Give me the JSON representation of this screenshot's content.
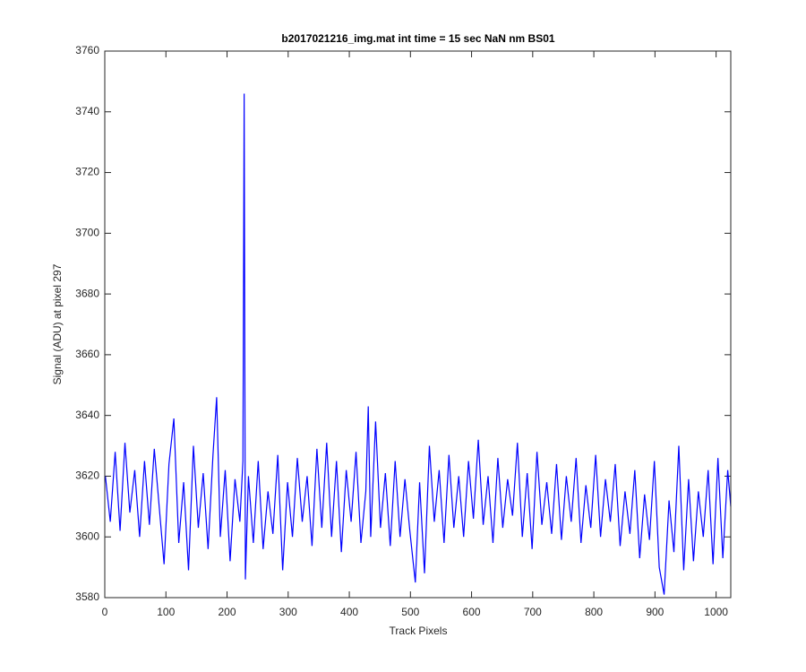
{
  "chart_data": {
    "type": "line",
    "title": "b2017021216_img.mat int time = 15 sec  NaN nm BS01",
    "xlabel": "Track Pixels",
    "ylabel": "Signal (ADU) at pixel 297",
    "xlim": [
      0,
      1024
    ],
    "ylim": [
      3580,
      3760
    ],
    "xticks": [
      0,
      100,
      200,
      300,
      400,
      500,
      600,
      700,
      800,
      900,
      1000
    ],
    "yticks": [
      3580,
      3600,
      3620,
      3640,
      3660,
      3680,
      3700,
      3720,
      3740,
      3760
    ],
    "grid": false,
    "x": [
      1,
      9,
      17,
      25,
      33,
      41,
      49,
      57,
      65,
      73,
      81,
      89,
      97,
      105,
      113,
      121,
      129,
      137,
      145,
      153,
      161,
      169,
      177,
      183,
      189,
      197,
      205,
      213,
      221,
      226,
      228,
      230,
      235,
      243,
      251,
      259,
      267,
      275,
      283,
      291,
      299,
      307,
      315,
      323,
      331,
      339,
      347,
      355,
      363,
      371,
      379,
      387,
      395,
      403,
      411,
      419,
      427,
      431,
      435,
      443,
      451,
      459,
      467,
      475,
      483,
      491,
      499,
      508,
      515,
      523,
      531,
      539,
      547,
      555,
      563,
      571,
      579,
      587,
      595,
      603,
      611,
      619,
      627,
      635,
      643,
      651,
      659,
      667,
      675,
      683,
      691,
      699,
      707,
      715,
      723,
      731,
      739,
      747,
      755,
      763,
      771,
      779,
      787,
      795,
      803,
      811,
      819,
      827,
      835,
      843,
      851,
      859,
      867,
      875,
      883,
      891,
      899,
      907,
      915,
      923,
      931,
      939,
      947,
      955,
      963,
      971,
      979,
      987,
      995,
      1003,
      1011,
      1019,
      1024
    ],
    "series": [
      {
        "name": "signal",
        "color": "#0000ff",
        "values": [
          3620,
          3605,
          3628,
          3602,
          3631,
          3608,
          3622,
          3600,
          3625,
          3604,
          3629,
          3610,
          3591,
          3624,
          3639,
          3598,
          3618,
          3589,
          3630,
          3603,
          3621,
          3596,
          3627,
          3646,
          3600,
          3622,
          3592,
          3619,
          3605,
          3625,
          3746,
          3586,
          3620,
          3598,
          3625,
          3596,
          3615,
          3601,
          3627,
          3589,
          3618,
          3600,
          3626,
          3605,
          3620,
          3597,
          3629,
          3603,
          3631,
          3600,
          3625,
          3595,
          3622,
          3605,
          3628,
          3598,
          3615,
          3643,
          3600,
          3638,
          3603,
          3621,
          3597,
          3625,
          3600,
          3619,
          3602,
          3585,
          3618,
          3588,
          3630,
          3605,
          3622,
          3598,
          3627,
          3603,
          3620,
          3600,
          3625,
          3606,
          3632,
          3604,
          3620,
          3598,
          3626,
          3603,
          3619,
          3607,
          3631,
          3600,
          3621,
          3596,
          3628,
          3604,
          3618,
          3601,
          3624,
          3599,
          3620,
          3605,
          3626,
          3598,
          3617,
          3603,
          3627,
          3600,
          3619,
          3605,
          3624,
          3597,
          3615,
          3601,
          3622,
          3593,
          3614,
          3599,
          3625,
          3590,
          3581,
          3612,
          3595,
          3630,
          3589,
          3619,
          3592,
          3615,
          3600,
          3622,
          3591,
          3626,
          3593,
          3622,
          3610
        ]
      }
    ]
  }
}
